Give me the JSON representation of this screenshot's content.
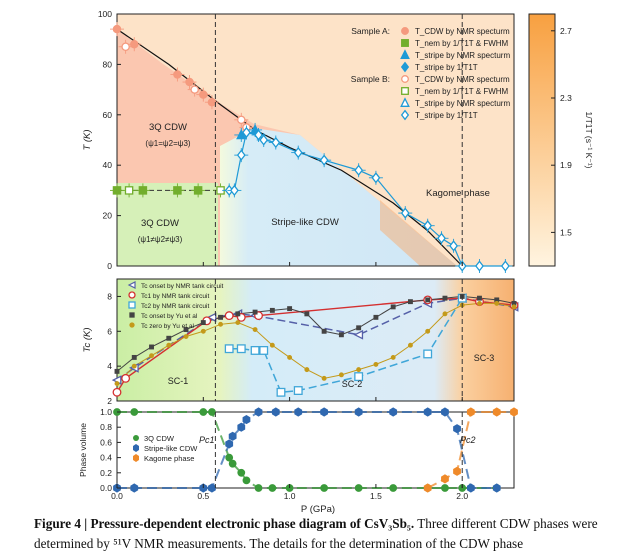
{
  "chart_data": [
    {
      "panel": "a",
      "type": "scatter",
      "xlabel": "",
      "ylabel": "T (K)",
      "xlim": [
        0,
        2.3
      ],
      "ylim": [
        0,
        100
      ],
      "yticks": [
        "0",
        "20",
        "40",
        "60",
        "80",
        "100"
      ],
      "region_labels": {
        "cdw3q_high": [
          "3Q CDW",
          "(ψ1=ψ2=ψ3)"
        ],
        "cdw3q_low": [
          "3Q CDW",
          "(ψ1≠ψ2≠ψ3)"
        ],
        "stripe": "Stripe-like CDW",
        "kagome": "Kagome phase"
      },
      "colorbar": {
        "label": "1/T1T (s⁻¹ K⁻¹)",
        "ticks": [
          "2.7",
          "2.3",
          "1.9",
          "1.5"
        ],
        "range": [
          1.3,
          2.8
        ]
      },
      "legend": {
        "sample_a_title": "Sample A:",
        "sample_b_title": "Sample B:",
        "entries": [
          {
            "text": "T_CDW by NMR specturm",
            "marker": "circle",
            "sample": "A"
          },
          {
            "text": "T_nem by 1/T1T & FWHM",
            "marker": "square",
            "sample": "A"
          },
          {
            "text": "T_stripe by NMR specturm",
            "marker": "triangle",
            "sample": "A"
          },
          {
            "text": "T_stripe by 1/T1T",
            "marker": "diamond",
            "sample": "A"
          },
          {
            "text": "T_CDW by NMR specturm",
            "marker": "circle",
            "sample": "B"
          },
          {
            "text": "T_nem by 1/T1T & FWHM",
            "marker": "square",
            "sample": "B"
          },
          {
            "text": "T_stripe by NMR specturm",
            "marker": "triangle",
            "sample": "B"
          },
          {
            "text": "T_stripe by 1/T1T",
            "marker": "diamond",
            "sample": "B"
          }
        ]
      },
      "series": [
        {
          "name": "T_CDW (A)",
          "color": "#f59a7e",
          "x": [
            0.0,
            0.1,
            0.35,
            0.42,
            0.5,
            0.55
          ],
          "y": [
            94,
            88,
            76,
            73,
            68,
            65
          ]
        },
        {
          "name": "T_CDW (B)",
          "color": "#f59a7e",
          "x": [
            0.05,
            0.45,
            0.72,
            0.75
          ],
          "y": [
            87,
            70,
            58,
            55
          ]
        },
        {
          "name": "T_nem (A)",
          "color": "#72ae2c",
          "x": [
            0.0,
            0.15,
            0.35,
            0.47
          ],
          "y": [
            30,
            30,
            30,
            30
          ]
        },
        {
          "name": "T_nem (B)",
          "color": "#72ae2c",
          "x": [
            0.07,
            0.6
          ],
          "y": [
            30,
            30
          ]
        },
        {
          "name": "T_stripe (A)",
          "color": "#1e9ad6",
          "x": [
            0.72,
            0.8
          ],
          "y": [
            52,
            54
          ]
        },
        {
          "name": "T_stripe (B)",
          "color": "#1e9ad6",
          "x": [
            0.65,
            0.68,
            0.72,
            0.75,
            0.82,
            0.85,
            0.92,
            1.05,
            1.2,
            1.4,
            1.5,
            1.67,
            1.8,
            1.88,
            1.95,
            2.0,
            2.1,
            2.25
          ],
          "y": [
            30,
            30,
            44,
            53,
            52,
            50,
            49,
            45,
            42,
            38,
            35,
            21,
            16,
            11,
            8,
            0,
            0,
            0
          ]
        }
      ],
      "phase_boundary": {
        "x": [
          0.0,
          0.3,
          0.6,
          0.8,
          1.0,
          1.3,
          1.6,
          1.8,
          2.0
        ],
        "y": [
          94,
          80,
          64,
          54,
          47,
          38,
          25,
          14,
          0
        ]
      },
      "dashed_lines_x": [
        0.57,
        2.0
      ]
    },
    {
      "panel": "b",
      "type": "line",
      "xlabel": "",
      "ylabel": "Tc (K)",
      "xlim": [
        0,
        2.3
      ],
      "ylim": [
        2,
        9
      ],
      "yticks": [
        "2",
        "4",
        "6",
        "8"
      ],
      "region_labels": [
        "SC-1",
        "SC-2",
        "SC-3"
      ],
      "legend": [
        "Tc onset by NMR tank circuit",
        "Tc1 by NMR tank circuit",
        "Tc2 by NMR tank circuit",
        "Tc onset by Yu et al",
        "Tc zero by Yu et al"
      ],
      "series": [
        {
          "name": "Tc onset by NMR tank circuit",
          "color": "#5560a8",
          "x": [
            0.0,
            0.1,
            0.55,
            0.7,
            0.8,
            1.4,
            1.8,
            2.0,
            2.3
          ],
          "y": [
            3.2,
            3.9,
            6.8,
            7.0,
            6.9,
            5.8,
            7.6,
            7.9,
            7.4
          ]
        },
        {
          "name": "Tc1 by NMR tank circuit",
          "color": "#d43030",
          "x": [
            0.0,
            0.05,
            0.52,
            0.65,
            0.72,
            0.82,
            1.8,
            2.0,
            2.1,
            2.3
          ],
          "y": [
            2.5,
            3.3,
            6.6,
            6.9,
            6.8,
            6.9,
            7.8,
            7.9,
            7.7,
            7.5
          ]
        },
        {
          "name": "Tc2 by NMR tank circuit",
          "color": "#3fa6d8",
          "x": [
            0.65,
            0.72,
            0.8,
            0.85,
            0.95,
            1.05,
            1.4,
            1.8,
            2.0
          ],
          "y": [
            5.0,
            5.0,
            4.9,
            4.9,
            2.5,
            2.6,
            3.4,
            4.7,
            7.9
          ]
        },
        {
          "name": "Tc onset by Yu et al",
          "color": "#444444",
          "x": [
            0.0,
            0.1,
            0.2,
            0.3,
            0.4,
            0.5,
            0.6,
            0.7,
            0.8,
            0.9,
            1.0,
            1.1,
            1.2,
            1.3,
            1.4,
            1.5,
            1.6,
            1.7,
            1.8,
            1.9,
            2.0,
            2.1,
            2.2,
            2.3
          ],
          "y": [
            3.7,
            4.5,
            5.1,
            5.6,
            6.1,
            6.5,
            6.8,
            7.0,
            7.1,
            7.2,
            7.3,
            7.0,
            6.0,
            5.8,
            6.2,
            6.8,
            7.4,
            7.7,
            7.8,
            7.9,
            8.0,
            7.9,
            7.8,
            7.6
          ]
        },
        {
          "name": "Tc zero by Yu et al",
          "color": "#c49a1a",
          "x": [
            0.0,
            0.1,
            0.2,
            0.3,
            0.4,
            0.5,
            0.6,
            0.7,
            0.8,
            0.9,
            1.0,
            1.1,
            1.2,
            1.3,
            1.4,
            1.5,
            1.6,
            1.7,
            1.8,
            1.9,
            2.0,
            2.1,
            2.2,
            2.3
          ],
          "y": [
            3.0,
            4.0,
            4.6,
            5.2,
            5.7,
            6.0,
            6.4,
            6.5,
            6.1,
            5.2,
            4.5,
            3.8,
            3.3,
            3.5,
            3.8,
            4.1,
            4.5,
            5.2,
            6.0,
            7.0,
            7.5,
            7.6,
            7.6,
            7.4
          ]
        }
      ],
      "dashed_lines_x": [
        0.57,
        2.0
      ]
    },
    {
      "panel": "c",
      "type": "scatter",
      "xlabel": "P (GPa)",
      "ylabel": "Phase volume",
      "xlim": [
        0,
        2.3
      ],
      "ylim": [
        0,
        1.0
      ],
      "xticks": [
        "0.0",
        "0.5",
        "1.0",
        "1.5",
        "2.0"
      ],
      "yticks": [
        "0.0",
        "0.2",
        "0.4",
        "0.6",
        "0.8",
        "1.0"
      ],
      "annotations": [
        "Pc1",
        "Pc2"
      ],
      "legend": [
        "3Q CDW",
        "Stripe-like CDW",
        "Kagome phase"
      ],
      "series": [
        {
          "name": "3Q CDW",
          "color": "#3a9a3a",
          "x": [
            0.0,
            0.1,
            0.5,
            0.55,
            0.65,
            0.67,
            0.72,
            0.75,
            0.82,
            0.9,
            1.0,
            1.2,
            1.4,
            1.6,
            1.8,
            1.9,
            2.0,
            2.2
          ],
          "y": [
            1.0,
            1.0,
            1.0,
            1.0,
            0.4,
            0.32,
            0.2,
            0.1,
            0.0,
            0.0,
            0.0,
            0.0,
            0.0,
            0.0,
            0.0,
            0.0,
            0.0,
            0.0
          ]
        },
        {
          "name": "Stripe-like CDW",
          "color": "#2f68b0",
          "x": [
            0.0,
            0.1,
            0.5,
            0.55,
            0.65,
            0.67,
            0.72,
            0.75,
            0.82,
            0.92,
            1.05,
            1.2,
            1.4,
            1.6,
            1.8,
            1.9,
            1.97,
            2.05,
            2.2
          ],
          "y": [
            0.0,
            0.0,
            0.0,
            0.0,
            0.58,
            0.68,
            0.8,
            0.9,
            1.0,
            1.0,
            1.0,
            1.0,
            1.0,
            1.0,
            1.0,
            1.0,
            0.78,
            0.0,
            0.0
          ]
        },
        {
          "name": "Kagome phase",
          "color": "#ef8a2a",
          "x": [
            1.8,
            1.9,
            1.97,
            2.05,
            2.2,
            2.3
          ],
          "y": [
            0.0,
            0.12,
            0.22,
            1.0,
            1.0,
            1.0
          ]
        }
      ],
      "dashed_lines_x": [
        0.57,
        2.0
      ]
    }
  ],
  "caption": {
    "label": "Figure 4 | Pressure-dependent electronic phase diagram of CsV₃Sb₅.",
    "text": "Three different CDW phases were determined by ⁵¹V NMR measurements. The details for the determination of the CDW phase"
  }
}
